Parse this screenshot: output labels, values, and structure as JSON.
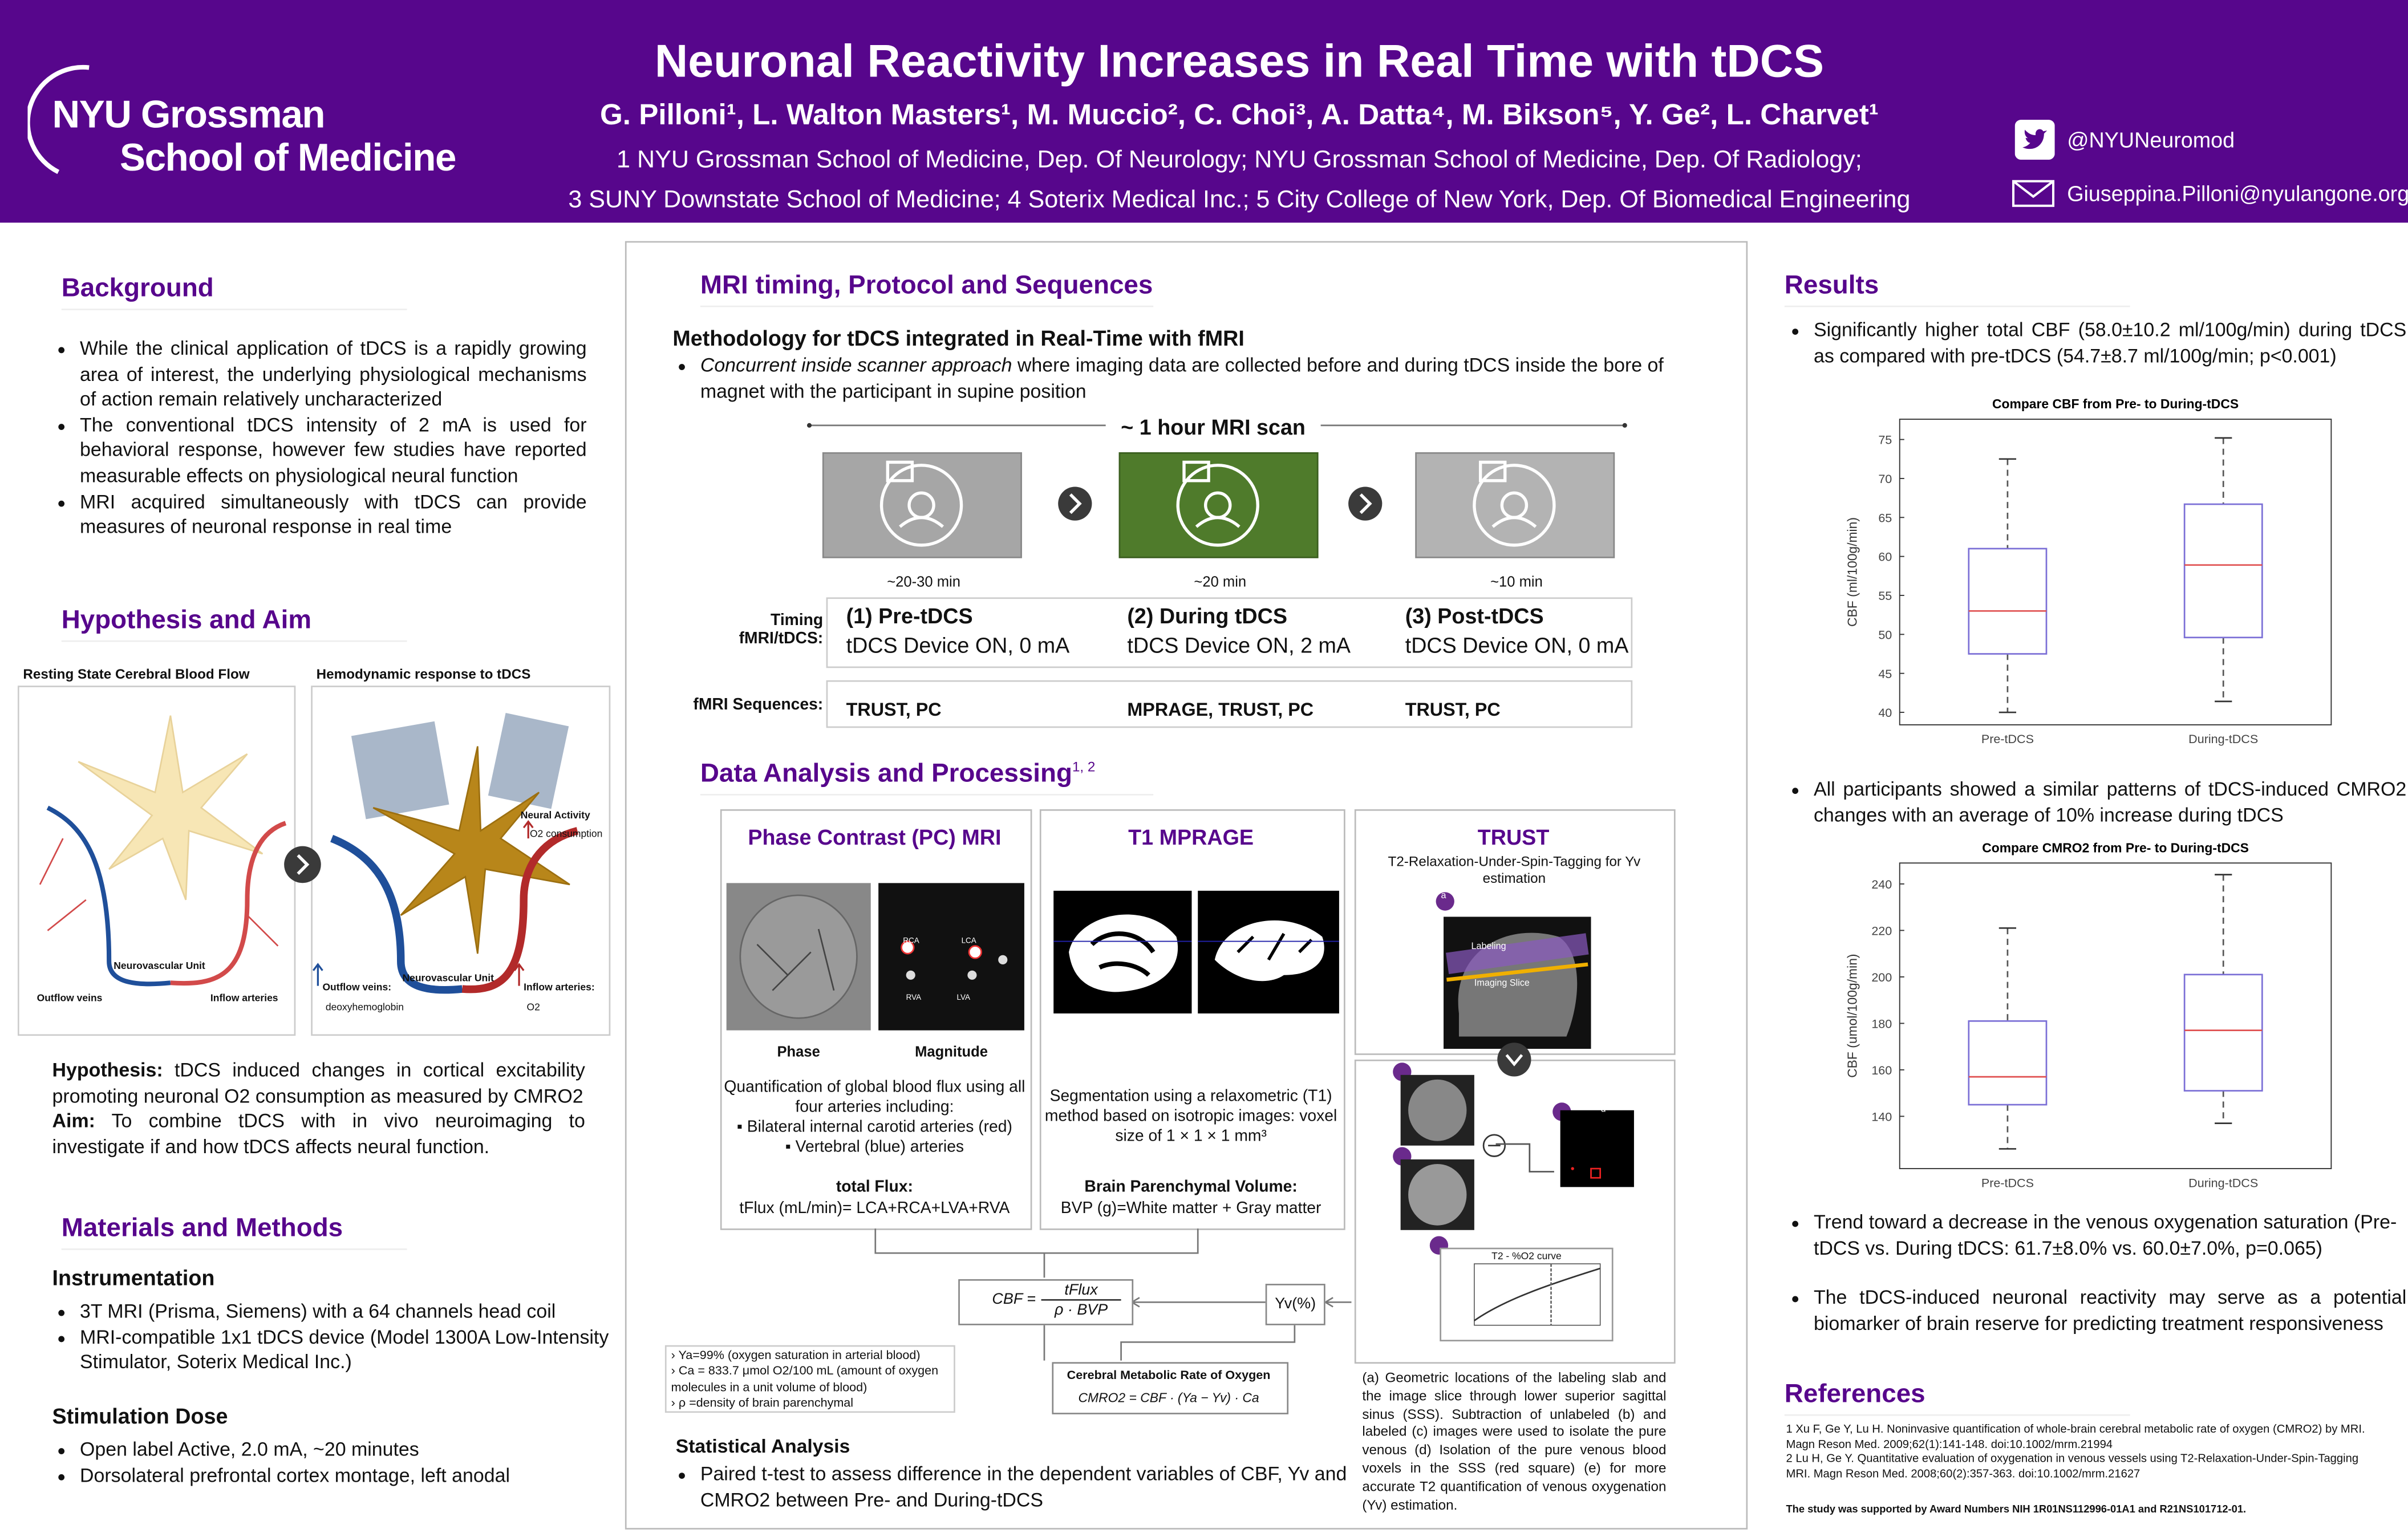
{
  "header": {
    "logo_line1": "NYU Grossman",
    "logo_line2": "School of Medicine",
    "title": "Neuronal Reactivity Increases in Real Time with tDCS",
    "authors": "G. Pilloni¹, L. Walton Masters¹, M. Muccio², C. Choi³, A. Datta⁴, M. Bikson⁵, Y. Ge², L. Charvet¹",
    "affiliations": [
      "1 NYU Grossman School of Medicine, Dep. Of Neurology; NYU Grossman School of Medicine, Dep. Of Radiology;",
      "3 SUNY Downstate School of Medicine; 4 Soterix Medical Inc.; 5 City College of New York, Dep. Of Biomedical Engineering"
    ],
    "twitter": "@NYUNeuromod",
    "email": "Giuseppina.Pilloni@nyulangone.org"
  },
  "background": {
    "heading": "Background",
    "bullets": [
      "While the clinical application of tDCS is a rapidly growing area of interest, the underlying physiological mechanisms of action remain relatively uncharacterized",
      "The conventional tDCS intensity of 2 mA is used for behavioral response, however few studies have reported measurable effects on physiological neural function",
      "MRI acquired simultaneously with tDCS can provide measures of neuronal response in real time"
    ]
  },
  "hypothesis": {
    "heading": "Hypothesis and Aim",
    "figure": {
      "left_title": "Resting State Cerebral Blood Flow",
      "right_title": "Hemodynamic response to tDCS",
      "left_unit": "Neurovascular Unit",
      "left_veins": "Outflow veins",
      "left_arteries": "Inflow arteries",
      "right_unit": "Neurovascular Unit",
      "neural_activity": "Neural Activity",
      "o2_consumption": "O2 consumption",
      "right_veins": "Outflow veins:",
      "deoxyhemoglobin": "deoxyhemoglobin",
      "right_arteries": "Inflow arteries:",
      "o2": "O2"
    },
    "hypothesis_label": "Hypothesis:",
    "hypothesis_text": "tDCS induced changes in cortical excitability promoting neuronal O2 consumption as measured by CMRO2",
    "aim_label": "Aim:",
    "aim_text": "To combine tDCS with in vivo neuroimaging to investigate if and how tDCS affects neural function."
  },
  "methods": {
    "heading": "Materials and Methods",
    "instrumentation_heading": "Instrumentation",
    "instrumentation": [
      "3T MRI (Prisma, Siemens) with a 64 channels head coil",
      "MRI-compatible 1x1 tDCS device (Model 1300A Low-Intensity Stimulator, Soterix Medical Inc.)"
    ],
    "dose_heading": "Stimulation Dose",
    "dose": [
      "Open label Active, 2.0 mA, ~20 minutes",
      "Dorsolateral prefrontal cortex montage, left anodal"
    ]
  },
  "mri": {
    "heading": "MRI timing, Protocol and Sequences",
    "subheading": "Methodology for tDCS integrated in Real-Time with fMRI",
    "bullet_em": "Concurrent inside scanner approach",
    "bullet_rest": "where imaging data are collected before and during tDCS inside the bore of magnet with the participant in supine position",
    "scan_length": "~ 1 hour MRI scan",
    "timing_label": "Timing fMRI/tDCS:",
    "sequences_label": "fMRI Sequences:",
    "phases": [
      {
        "duration": "~20-30 min",
        "name": "(1) Pre-tDCS",
        "device": "tDCS Device ON, 0 mA",
        "sequences": "TRUST, PC"
      },
      {
        "duration": "~20 min",
        "name": "(2) During tDCS",
        "device": "tDCS Device ON, 2 mA",
        "sequences": "MPRAGE, TRUST, PC"
      },
      {
        "duration": "~10 min",
        "name": "(3) Post-tDCS",
        "device": "tDCS Device ON, 0 mA",
        "sequences": "TRUST, PC"
      }
    ]
  },
  "analysis": {
    "heading": "Data Analysis and Processing",
    "heading_refs": "1, 2",
    "pc": {
      "title": "Phase Contrast (PC) MRI",
      "phase": "Phase",
      "magnitude": "Magnitude",
      "vessels": [
        "RCA",
        "LCA",
        "RVA",
        "LVA"
      ],
      "description": "Quantification of global blood flux using all four arteries including:",
      "bullets": [
        "Bilateral internal carotid arteries (red)",
        "Vertebral (blue) arteries"
      ],
      "flux_heading": "total Flux:",
      "flux_formula": "tFlux (mL/min)= LCA+RCA+LVA+RVA"
    },
    "t1": {
      "title": "T1 MPRAGE",
      "description": "Segmentation using a relaxometric (T1) method based on isotropic images: voxel size of 1 × 1 × 1 mm³",
      "volume_heading": "Brain Parenchymal Volume:",
      "volume_formula": "BVP (g)=White matter + Gray matter"
    },
    "trust": {
      "title": "TRUST",
      "subtitle": "T2-Relaxation-Under-Spin-Tagging for Yv estimation",
      "panels": [
        "a",
        "b",
        "c",
        "d",
        "e"
      ],
      "labeling": "Labeling",
      "imaging_slice": "Imaging Slice",
      "curve_title": "T2 - %O2 curve",
      "caption": "(a) Geometric locations of the labeling slab and the image slice through lower superior sagittal sinus (SSS). Subtraction of unlabeled (b) and labeled (c) images were used to isolate the pure venous (d) Isolation of the pure venous blood voxels in the SSS (red square) (e) for more accurate T2 quantification of venous oxygenation (Yv) estimation."
    },
    "cbf_formula": {
      "lhs": "CBF =",
      "numerator": "tFlux",
      "denominator": "ρ · BVP"
    },
    "yv": "Yv(%)",
    "cmro2_title": "Cerebral Metabolic Rate of Oxygen",
    "cmro2_formula": "CMRO2 = CBF · (Ya − Yv) · Ca",
    "notes": [
      "Ya=99% (oxygen saturation in arterial blood)",
      "Ca = 833.7 μmol O2/100 mL (amount of oxygen molecules in a unit volume of blood)",
      "ρ =density of brain parenchymal"
    ],
    "stats_heading": "Statistical Analysis",
    "stats_bullet": "Paired t-test to assess difference in the dependent variables of CBF, Yv and CMRO2 between Pre- and During-tDCS"
  },
  "results": {
    "heading": "Results",
    "bullets": [
      "Significantly higher total CBF (58.0±10.2 ml/100g/min) during tDCS as compared with pre-tDCS (54.7±8.7 ml/100g/min; p<0.001)",
      "All participants showed a similar patterns of tDCS-induced CMRO2 changes with an average of 10% increase during tDCS",
      "Trend toward a decrease in the venous oxygenation saturation (Pre-tDCS vs. During tDCS: 61.7±8.0% vs. 60.0±7.0%, p=0.065)",
      "The tDCS-induced neuronal reactivity may serve as a potential biomarker of brain reserve for predicting treatment responsiveness"
    ]
  },
  "chart_data": [
    {
      "type": "box",
      "title": "Compare CBF from Pre- to During-tDCS",
      "y_label": "CBF (ml/100g/min)",
      "categories": [
        "Pre-tDCS",
        "During-tDCS"
      ],
      "boxes": [
        {
          "min": 40,
          "q1": 47.5,
          "median": 53,
          "q3": 61,
          "max": 72.5
        },
        {
          "min": 41.4,
          "q1": 49.6,
          "median": 58.9,
          "q3": 66.7,
          "max": 75.2
        }
      ],
      "color": "#7b6fd6",
      "median_color": "#e05050",
      "ylim": [
        38.4,
        77.6
      ],
      "yticks": [
        40,
        45,
        50,
        55,
        60,
        65,
        70,
        75
      ]
    },
    {
      "type": "box",
      "title": "Compare CMRO2 from Pre- to During-tDCS",
      "y_label": "CBF (umol/100g/min)",
      "categories": [
        "Pre-tDCS",
        "During-tDCS"
      ],
      "boxes": [
        {
          "min": 126,
          "q1": 145,
          "median": 157,
          "q3": 181,
          "max": 221
        },
        {
          "min": 137,
          "q1": 151,
          "median": 177,
          "q3": 201,
          "max": 244
        }
      ],
      "color": "#7b6fd6",
      "median_color": "#e05050",
      "ylim": [
        117.5,
        249
      ],
      "yticks": [
        140,
        160,
        180,
        200,
        220,
        240
      ]
    }
  ],
  "references": {
    "heading": "References",
    "items": [
      "1 Xu F, Ge Y, Lu H. Noninvasive quantification of whole-brain cerebral metabolic rate of oxygen (CMRO2) by MRI. Magn Reson Med. 2009;62(1):141-148. doi:10.1002/mrm.21994",
      "2 Lu H, Ge Y. Quantitative evaluation of oxygenation in venous vessels using T2-Relaxation-Under-Spin-Tagging MRI. Magn Reson Med. 2008;60(2):357-363. doi:10.1002/mrm.21627"
    ],
    "funding": "The study was supported by Award Numbers NIH 1R01NS112996-01A1 and R21NS101712-01."
  }
}
